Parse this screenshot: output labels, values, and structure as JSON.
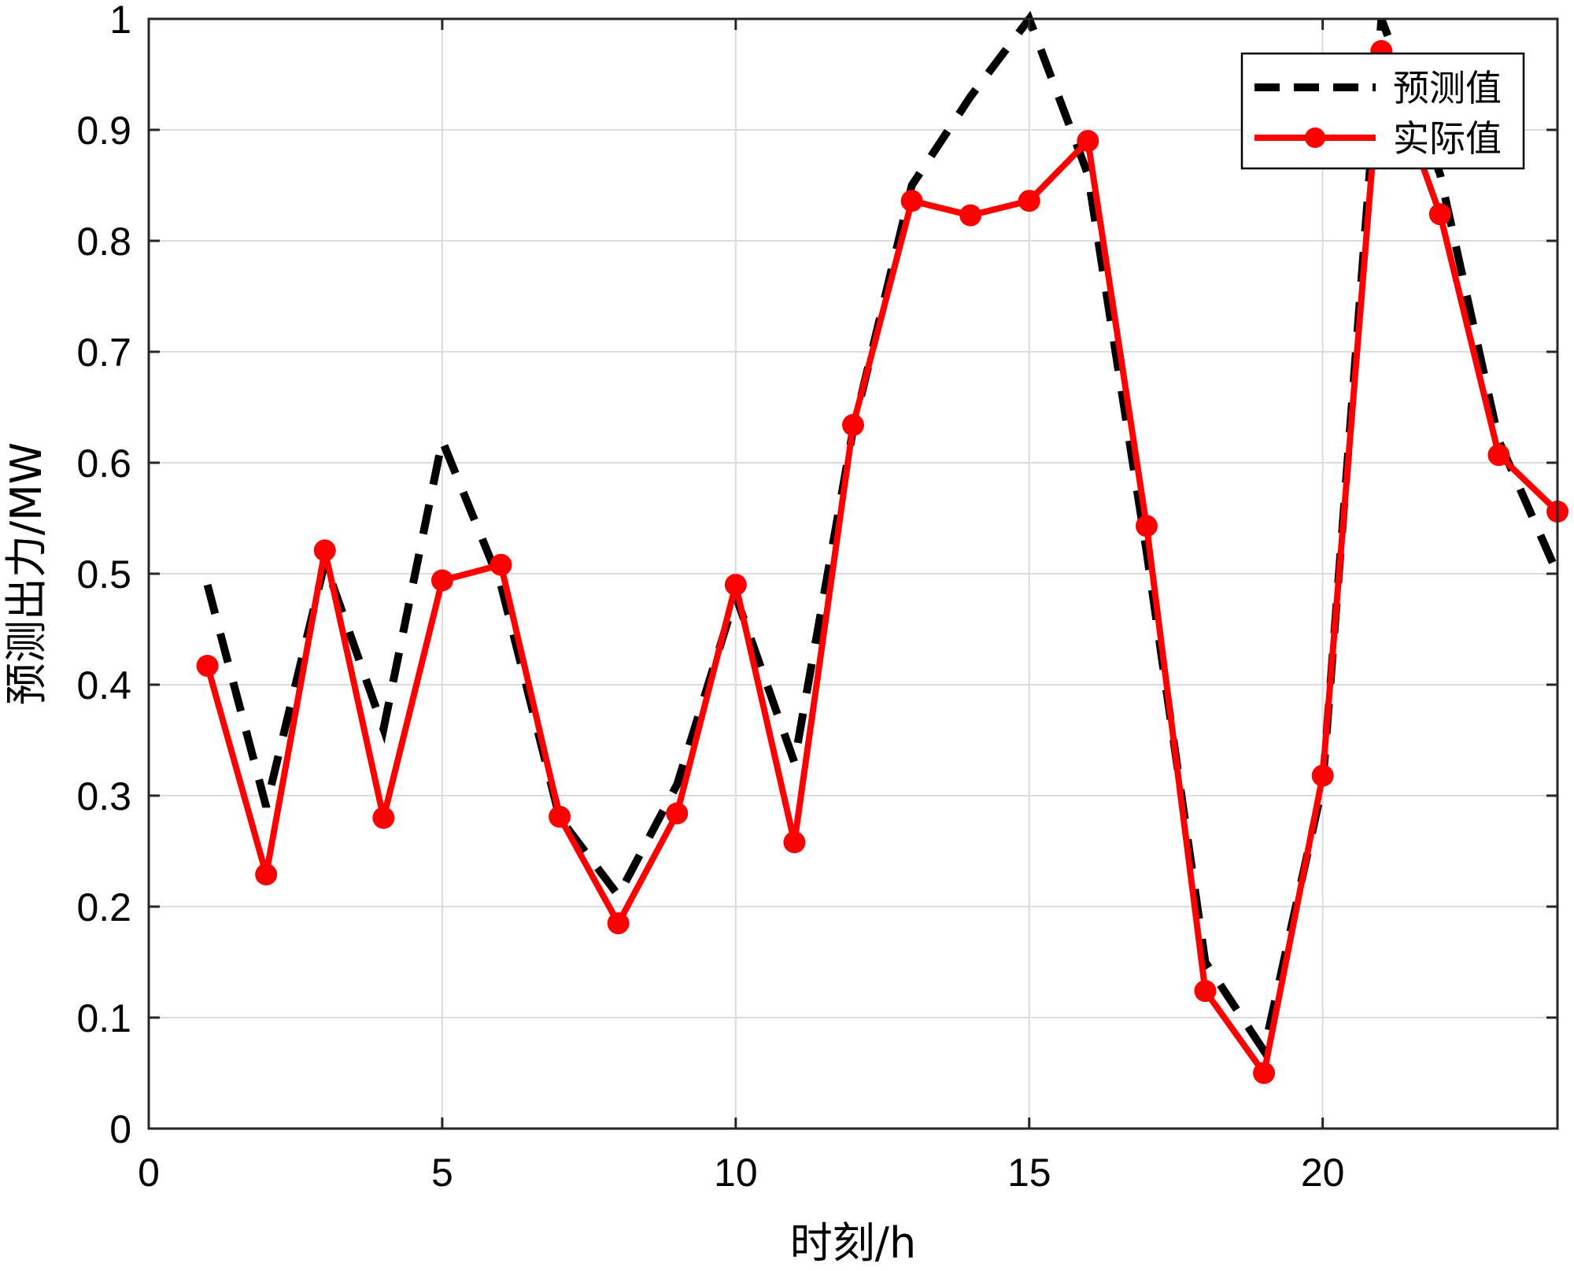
{
  "chart_data": {
    "type": "line",
    "xlabel": "时刻/h",
    "ylabel": "预测出力/MW",
    "xlim": [
      0,
      24
    ],
    "ylim": [
      0,
      1
    ],
    "xticks": [
      0,
      5,
      10,
      15,
      20
    ],
    "yticks": [
      0,
      0.1,
      0.2,
      0.3,
      0.4,
      0.5,
      0.6,
      0.7,
      0.8,
      0.9,
      1
    ],
    "grid": true,
    "legend_position": "top-right",
    "x": [
      1,
      2,
      3,
      4,
      5,
      6,
      7,
      8,
      9,
      10,
      11,
      12,
      13,
      14,
      15,
      16,
      17,
      18,
      19,
      20,
      21,
      22,
      23,
      24
    ],
    "series": [
      {
        "name": "预测值",
        "style": "dashed",
        "color": "#000000",
        "values": [
          0.49,
          0.29,
          0.51,
          0.36,
          0.62,
          0.49,
          0.28,
          0.21,
          0.31,
          0.48,
          0.33,
          0.63,
          0.85,
          0.93,
          1.0,
          0.86,
          0.52,
          0.15,
          0.07,
          0.31,
          1.0,
          0.86,
          0.62,
          0.5
        ]
      },
      {
        "name": "实际值",
        "style": "solid-marker",
        "color": "#ff0000",
        "values": [
          0.417,
          0.229,
          0.521,
          0.28,
          0.494,
          0.508,
          0.281,
          0.185,
          0.284,
          0.49,
          0.258,
          0.634,
          0.836,
          0.823,
          0.836,
          0.89,
          0.543,
          0.124,
          0.05,
          0.318,
          0.971,
          0.824,
          0.607,
          0.556
        ]
      }
    ]
  }
}
